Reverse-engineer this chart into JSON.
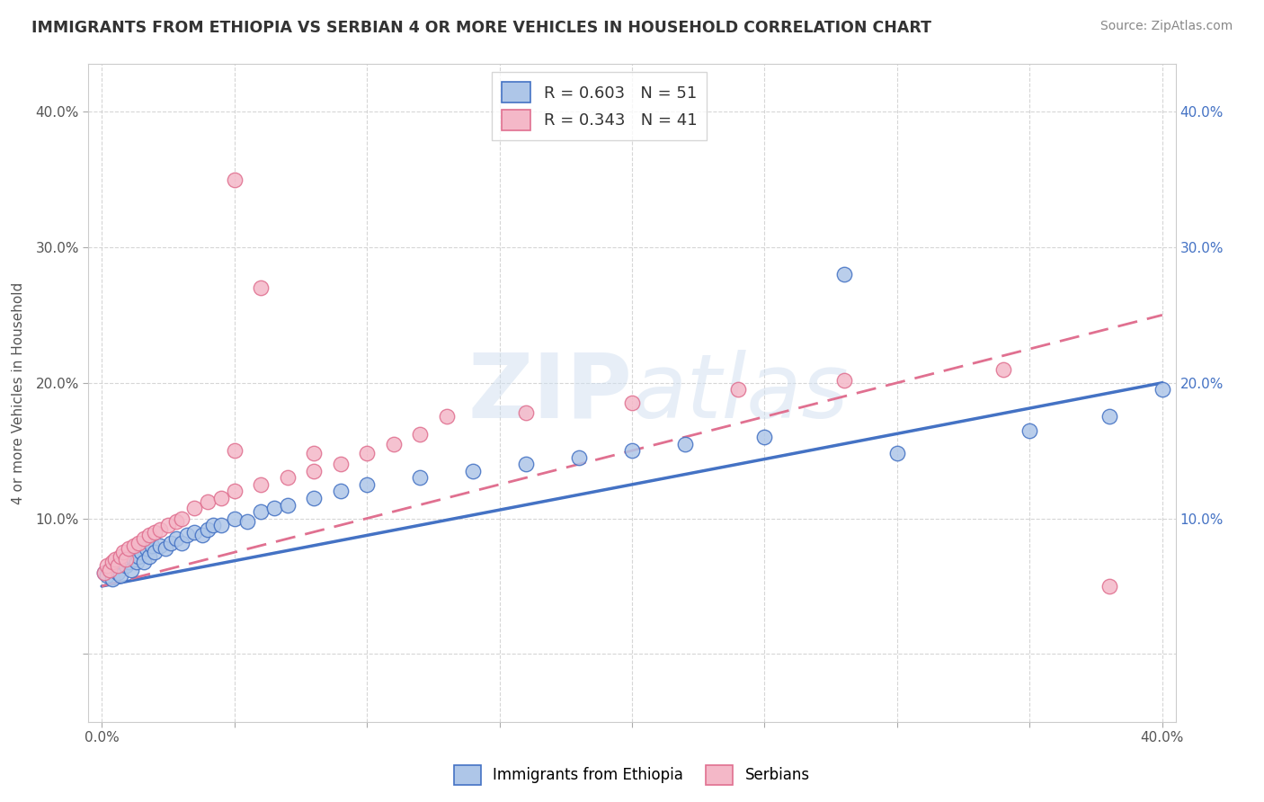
{
  "title": "IMMIGRANTS FROM ETHIOPIA VS SERBIAN 4 OR MORE VEHICLES IN HOUSEHOLD CORRELATION CHART",
  "source": "Source: ZipAtlas.com",
  "ylabel": "4 or more Vehicles in Household",
  "legend_label_1": "Immigrants from Ethiopia",
  "legend_label_2": "Serbians",
  "R1": 0.603,
  "N1": 51,
  "R2": 0.343,
  "N2": 41,
  "xlim": [
    -0.005,
    0.405
  ],
  "ylim": [
    -0.05,
    0.435
  ],
  "color_blue_fill": "#aec6e8",
  "color_blue_edge": "#4472c4",
  "color_pink_fill": "#f4b8c8",
  "color_pink_edge": "#e07090",
  "color_blue_line": "#4472c4",
  "color_pink_line": "#e07090",
  "color_watermark": "#d0dff0",
  "color_grid": "#cccccc",
  "blue_x": [
    0.001,
    0.002,
    0.003,
    0.004,
    0.005,
    0.006,
    0.007,
    0.008,
    0.009,
    0.01,
    0.011,
    0.012,
    0.013,
    0.014,
    0.015,
    0.016,
    0.017,
    0.018,
    0.019,
    0.02,
    0.022,
    0.024,
    0.026,
    0.028,
    0.03,
    0.032,
    0.035,
    0.038,
    0.04,
    0.042,
    0.045,
    0.05,
    0.055,
    0.06,
    0.065,
    0.07,
    0.08,
    0.09,
    0.1,
    0.12,
    0.14,
    0.16,
    0.18,
    0.2,
    0.22,
    0.25,
    0.28,
    0.3,
    0.35,
    0.38,
    0.4
  ],
  "blue_y": [
    0.06,
    0.058,
    0.062,
    0.055,
    0.065,
    0.06,
    0.058,
    0.07,
    0.065,
    0.068,
    0.062,
    0.07,
    0.068,
    0.072,
    0.075,
    0.068,
    0.078,
    0.072,
    0.08,
    0.075,
    0.08,
    0.078,
    0.082,
    0.085,
    0.082,
    0.088,
    0.09,
    0.088,
    0.092,
    0.095,
    0.095,
    0.1,
    0.098,
    0.105,
    0.108,
    0.11,
    0.115,
    0.12,
    0.125,
    0.13,
    0.135,
    0.14,
    0.145,
    0.15,
    0.155,
    0.16,
    0.28,
    0.148,
    0.165,
    0.175,
    0.195
  ],
  "pink_x": [
    0.001,
    0.002,
    0.003,
    0.004,
    0.005,
    0.006,
    0.007,
    0.008,
    0.009,
    0.01,
    0.012,
    0.014,
    0.016,
    0.018,
    0.02,
    0.022,
    0.025,
    0.028,
    0.03,
    0.035,
    0.04,
    0.045,
    0.05,
    0.06,
    0.07,
    0.08,
    0.09,
    0.1,
    0.11,
    0.12,
    0.05,
    0.06,
    0.13,
    0.16,
    0.2,
    0.24,
    0.28,
    0.05,
    0.08,
    0.34,
    0.38
  ],
  "pink_y": [
    0.06,
    0.065,
    0.062,
    0.068,
    0.07,
    0.065,
    0.072,
    0.075,
    0.07,
    0.078,
    0.08,
    0.082,
    0.085,
    0.088,
    0.09,
    0.092,
    0.095,
    0.098,
    0.1,
    0.108,
    0.112,
    0.115,
    0.12,
    0.125,
    0.13,
    0.135,
    0.14,
    0.148,
    0.155,
    0.162,
    0.35,
    0.27,
    0.175,
    0.178,
    0.185,
    0.195,
    0.202,
    0.15,
    0.148,
    0.21,
    0.05
  ],
  "blue_trend": [
    0.0,
    0.4,
    0.05,
    0.2
  ],
  "pink_trend": [
    0.0,
    0.4,
    0.05,
    0.25
  ]
}
